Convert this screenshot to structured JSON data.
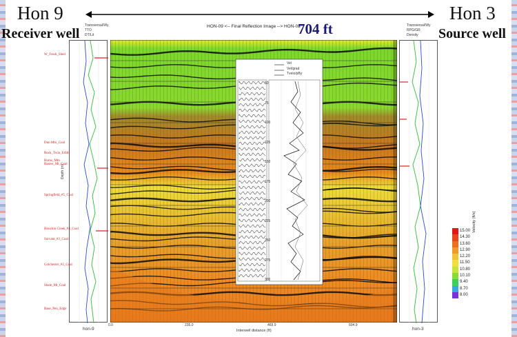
{
  "header": {
    "left_well_name": "Hon 9",
    "left_well_role": "Receiver well",
    "right_well_name": "Hon 3",
    "right_well_role": "Source well",
    "figure_title": "HON-09 <-- Final Reflection Image --> HON-03",
    "distance": "704 ft"
  },
  "axes": {
    "x_label": "Interwell distance (ft)",
    "x_ticks": [
      "0.0",
      "235.0",
      "469.9",
      "604.9"
    ],
    "y_label": "Depth (m)",
    "left_log_label": "hon-9",
    "right_log_label": "hon-3"
  },
  "formations": [
    "W_Fresh_Shed",
    "Dun Mtn_Coal",
    "Rock_Twin_Edith",
    "Burns_Mtn",
    "Baxter_Mt_Coal",
    "Springfield_#5_Coal",
    "Houchin Creek_#4_Coal",
    "Survant_#3_Coal",
    "Colchester_#2_Coal",
    "Shale_Mt_Coal",
    "Base_Pen_Edge"
  ],
  "log_legends": {
    "left": [
      "Transversal/Wy",
      "TTO",
      "DT/Lit"
    ],
    "right": [
      "Transversal/Wy",
      "RPG/GR",
      "Density"
    ],
    "inset": [
      "Vel",
      "Vel/grad",
      "Tvelo/pBy"
    ]
  },
  "inset_depths": [
    "50",
    "75",
    "100",
    "125",
    "150",
    "175",
    "200",
    "225",
    "250",
    "275",
    "300"
  ],
  "velocity_legend": {
    "title": "Velocity (ft/s)",
    "entries": [
      {
        "label": "15.00",
        "color": "#e01818"
      },
      {
        "label": "14.30",
        "color": "#e8471c"
      },
      {
        "label": "13.60",
        "color": "#ed6f22"
      },
      {
        "label": "12.90",
        "color": "#f09a2a"
      },
      {
        "label": "12.20",
        "color": "#f3c23a"
      },
      {
        "label": "11.50",
        "color": "#eedf3c"
      },
      {
        "label": "10.80",
        "color": "#c8e43a"
      },
      {
        "label": "10.10",
        "color": "#88dc32"
      },
      {
        "label": "9.40",
        "color": "#3cd25a"
      },
      {
        "label": "8.70",
        "color": "#38a8e0"
      },
      {
        "label": "8.00",
        "color": "#7a32d8"
      }
    ]
  }
}
